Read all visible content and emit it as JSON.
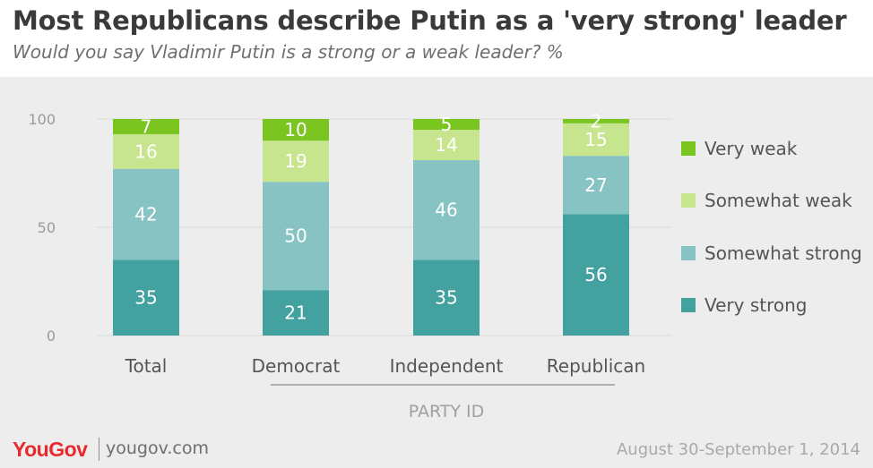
{
  "title": "Most Republicans describe Putin as a 'very strong' leader",
  "subtitle": "Would you say Vladimir Putin is a strong or a weak leader? %",
  "footer": {
    "brand": "YouGov",
    "url": "yougov.com",
    "date": "August 30-September 1, 2014"
  },
  "colors": {
    "very_weak": "#7ac520",
    "somewhat_weak": "#c6e58e",
    "somewhat_strong": "#88c3c4",
    "very_strong": "#43a19f",
    "background_panel": "#ededed"
  },
  "chart_data": {
    "type": "bar",
    "stacked": true,
    "categories": [
      "Total",
      "Democrat",
      "Independent",
      "Republican"
    ],
    "group_label": "PARTY ID",
    "series": [
      {
        "name": "Very strong",
        "values": [
          35,
          21,
          35,
          56
        ],
        "color": "#43a19f"
      },
      {
        "name": "Somewhat strong",
        "values": [
          42,
          50,
          46,
          27
        ],
        "color": "#88c3c4"
      },
      {
        "name": "Somewhat weak",
        "values": [
          16,
          19,
          14,
          15
        ],
        "color": "#c6e58e"
      },
      {
        "name": "Very weak",
        "values": [
          7,
          10,
          5,
          2
        ],
        "color": "#7ac520"
      }
    ],
    "yticks": [
      "0",
      "50",
      "100"
    ],
    "ylim": [
      0,
      100
    ],
    "grid": true,
    "legend": {
      "position": "right",
      "order": [
        "Very weak",
        "Somewhat weak",
        "Somewhat strong",
        "Very strong"
      ]
    }
  }
}
